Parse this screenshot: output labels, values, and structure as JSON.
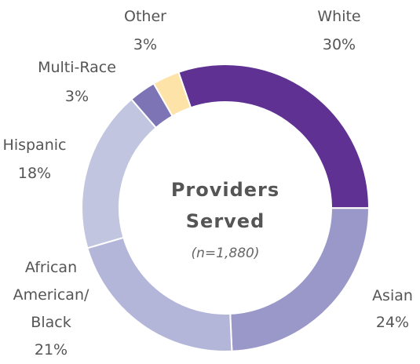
{
  "chart_data": {
    "type": "donut",
    "title": "Providers Served",
    "subtitle": "(n=1,880)",
    "categories": [
      "White",
      "Asian",
      "African American/ Black",
      "Hispanic",
      "Multi-Race",
      "Other"
    ],
    "values": [
      30,
      24,
      21,
      18,
      3,
      3
    ],
    "value_labels": [
      "30%",
      "24%",
      "21%",
      "18%",
      "3%",
      "3%"
    ],
    "colors": [
      "#5e3192",
      "#9a98c8",
      "#b4b6d9",
      "#c1c5df",
      "#7c74b5",
      "#fde3a7"
    ]
  }
}
